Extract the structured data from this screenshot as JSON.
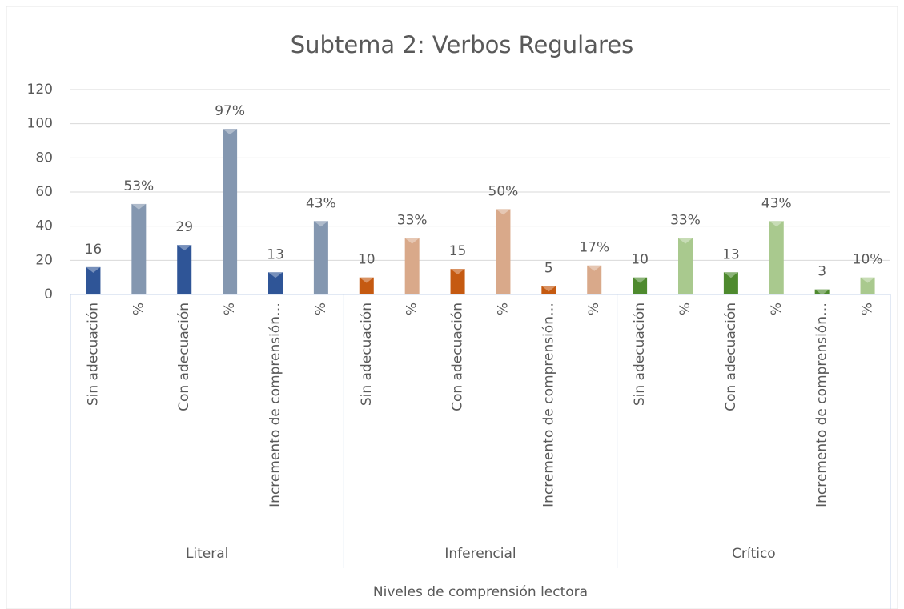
{
  "chart_data": {
    "type": "bar",
    "title": "Subtema 2: Verbos Regulares",
    "xlabel": "Niveles de comprensión lectora",
    "ylim": [
      0,
      120
    ],
    "yticks": [
      0,
      20,
      40,
      60,
      80,
      100,
      120
    ],
    "grid": true,
    "groups": [
      {
        "name": "Literal",
        "categories": [
          "Sin adecuación",
          "%",
          "Con adecuación",
          "%",
          "Incremento de comprensión…",
          "%"
        ],
        "values": [
          16,
          53,
          29,
          97,
          13,
          43
        ],
        "value_labels": [
          "16",
          "53%",
          "29",
          "97%",
          "13",
          "43%"
        ],
        "colors": [
          "#2f5597",
          "#8497b0",
          "#2f5597",
          "#8497b0",
          "#2f5597",
          "#8497b0"
        ]
      },
      {
        "name": "Inferencial",
        "categories": [
          "Sin adecuación",
          "%",
          "Con adecuación",
          "%",
          "Incremento de comprensión…",
          "%"
        ],
        "values": [
          10,
          33,
          15,
          50,
          5,
          17
        ],
        "value_labels": [
          "10",
          "33%",
          "15",
          "50%",
          "5",
          "17%"
        ],
        "colors": [
          "#c55a11",
          "#d9a98a",
          "#c55a11",
          "#d9a98a",
          "#c55a11",
          "#d9a98a"
        ]
      },
      {
        "name": "Crítico",
        "categories": [
          "Sin adecuación",
          "%",
          "Con adecuación",
          "%",
          "Incremento de comprensión…",
          "%"
        ],
        "values": [
          10,
          33,
          13,
          43,
          3,
          10
        ],
        "value_labels": [
          "10",
          "33%",
          "13",
          "43%",
          "3",
          "10%"
        ],
        "colors": [
          "#4e8a2e",
          "#a9c98e",
          "#4e8a2e",
          "#a9c98e",
          "#4e8a2e",
          "#a9c98e"
        ]
      }
    ]
  }
}
